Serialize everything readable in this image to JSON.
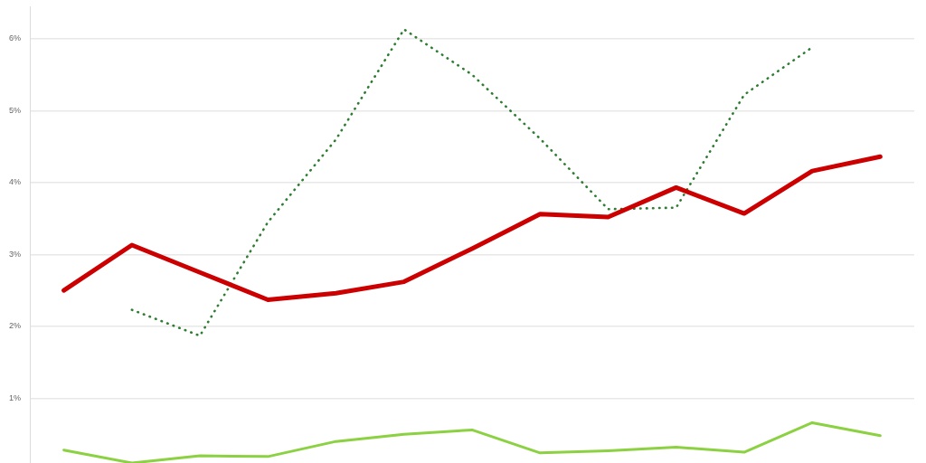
{
  "chart_data": {
    "type": "line",
    "categories": [
      null,
      null,
      null,
      null,
      null,
      null,
      null,
      null,
      null,
      null,
      null,
      null,
      null
    ],
    "series": [
      {
        "color": "#cc0000",
        "values": [
          2.5,
          3.13,
          2.75,
          2.37,
          2.46,
          2.62,
          3.08,
          3.56,
          3.52,
          3.93,
          3.57,
          4.16,
          4.36
        ]
      },
      {
        "color": "#2e7d32",
        "line_style": "dotted",
        "values": [
          null,
          2.23,
          1.87,
          3.45,
          4.6,
          6.13,
          5.5,
          4.61,
          3.63,
          3.65,
          5.22,
          5.88,
          null
        ]
      },
      {
        "color": "#8cd142",
        "values": [
          0.28,
          0.1,
          0.2,
          0.19,
          0.4,
          0.5,
          0.56,
          0.24,
          0.27,
          0.32,
          0.25,
          0.66,
          0.48
        ]
      }
    ],
    "ylim": [
      0.1,
      6.45
    ],
    "yticks": [
      {
        "value": 1,
        "label": "1%"
      },
      {
        "value": 2,
        "label": "2%"
      },
      {
        "value": 3,
        "label": "3%"
      },
      {
        "value": 4,
        "label": "4%"
      },
      {
        "value": 5,
        "label": "5%"
      },
      {
        "value": 6,
        "label": "6%"
      }
    ],
    "grid": "y",
    "tick_labels": "y",
    "marker": "none"
  }
}
